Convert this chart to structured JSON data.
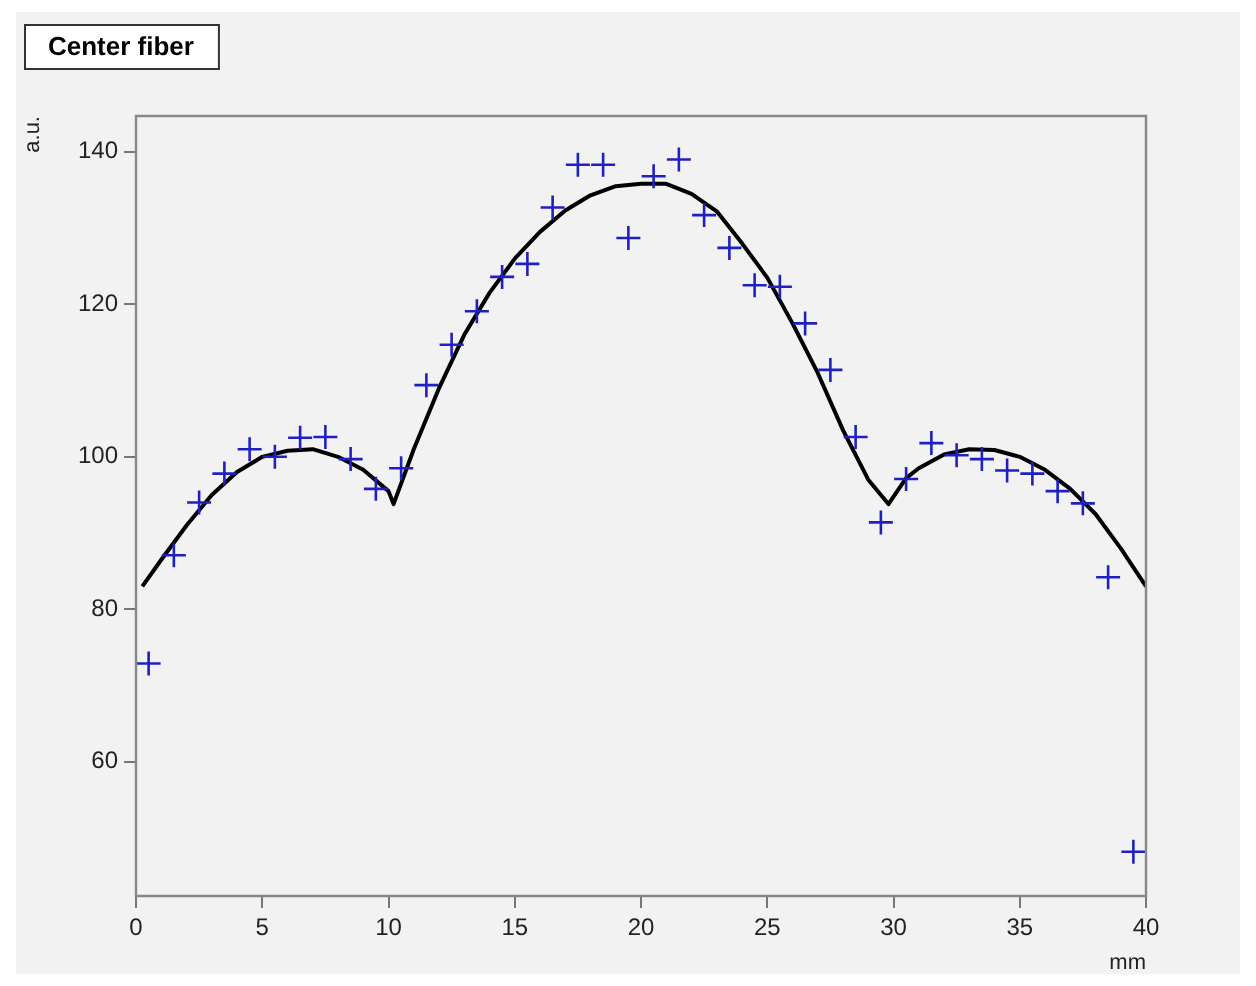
{
  "chart_data": {
    "type": "scatter",
    "title": "Center fiber",
    "xlabel": "mm",
    "ylabel": "a.u.",
    "xlim": [
      0,
      40
    ],
    "xticks": [
      0,
      5,
      10,
      15,
      20,
      25,
      30,
      35,
      40
    ],
    "ylim": [
      42.4,
      144.7
    ],
    "yticks": [
      60,
      80,
      100,
      120,
      140
    ],
    "marker": "cross",
    "legend": false,
    "series": [
      {
        "color": "#2020c0",
        "x": [
          0.5,
          1.5,
          2.5,
          3.5,
          4.5,
          5.5,
          6.5,
          7.5,
          8.5,
          9.5,
          10.5,
          11.5,
          12.5,
          13.5,
          14.5,
          15.5,
          16.5,
          17.5,
          18.5,
          19.5,
          20.5,
          21.5,
          22.5,
          23.5,
          24.5,
          25.5,
          26.5,
          27.5,
          28.5,
          29.5,
          30.5,
          31.5,
          32.5,
          33.5,
          34.5,
          35.5,
          36.5,
          37.5,
          38.5,
          39.5
        ],
        "values": [
          72.9,
          87.1,
          94.0,
          97.8,
          101.0,
          100.0,
          102.5,
          102.6,
          99.7,
          95.8,
          98.5,
          109.4,
          114.7,
          119.1,
          123.6,
          125.3,
          132.7,
          138.3,
          138.3,
          128.7,
          136.8,
          139.0,
          131.7,
          127.4,
          122.5,
          122.3,
          117.5,
          111.4,
          102.6,
          91.4,
          97.1,
          101.8,
          100.2,
          99.7,
          98.2,
          97.8,
          95.5,
          93.9,
          84.2,
          48.2
        ]
      },
      {
        "type": "line",
        "color": "#000000",
        "marker": "none",
        "line_style": "solid",
        "x": [
          0.25,
          1,
          2,
          3,
          4,
          5,
          6,
          7,
          8,
          9,
          10,
          10.2,
          11,
          12,
          13,
          14,
          15,
          16,
          17,
          18,
          19,
          20,
          21,
          22,
          23,
          24,
          25,
          26,
          27,
          28,
          29,
          29.8,
          30.5,
          31,
          32,
          33,
          34,
          35,
          36,
          37,
          38,
          39,
          40
        ],
        "values": [
          83,
          86.5,
          91,
          95,
          98,
          100,
          100.8,
          101,
          100,
          98.3,
          95.5,
          93.8,
          101,
          109,
          116,
          121.5,
          126,
          129.5,
          132.3,
          134.3,
          135.5,
          135.8,
          135.8,
          134.5,
          132.2,
          128,
          123.5,
          117.5,
          111,
          103.5,
          97,
          93.8,
          97.2,
          98.5,
          100.3,
          101,
          100.9,
          100,
          98.3,
          95.8,
          92.5,
          88,
          83
        ]
      }
    ]
  }
}
